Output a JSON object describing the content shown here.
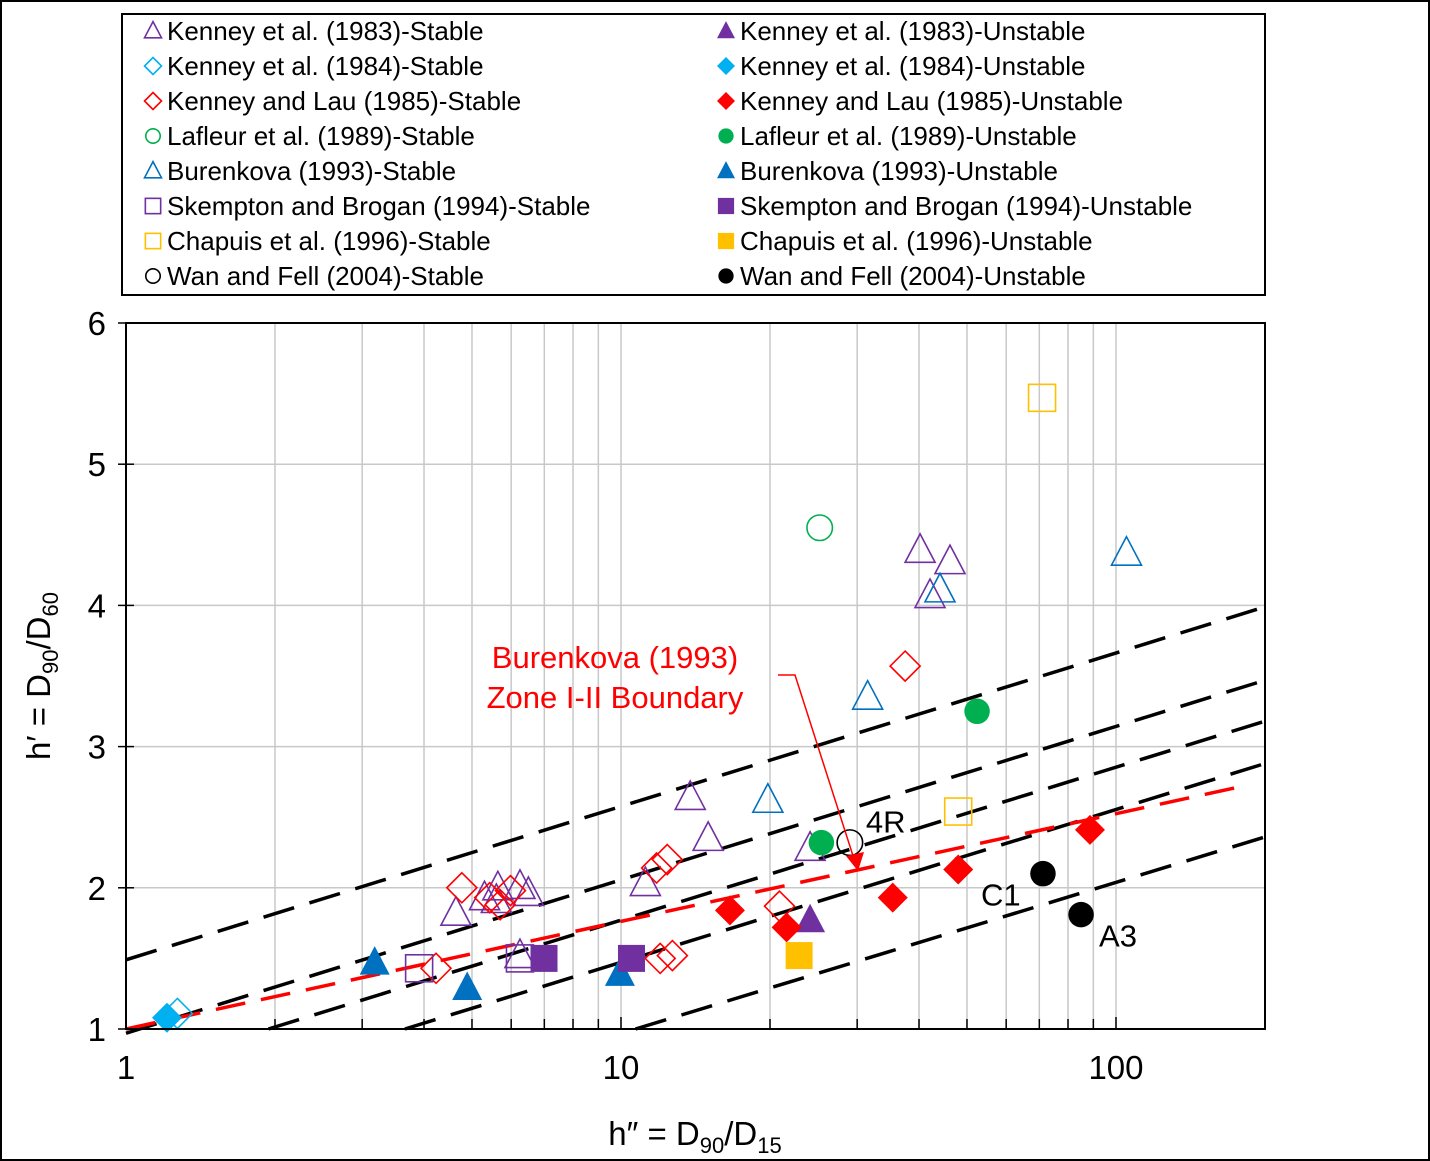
{
  "chart_data": {
    "type": "scatter",
    "title": "",
    "xlabel_parts": [
      "h″ = D",
      "90",
      "/D",
      "15"
    ],
    "ylabel_parts": [
      "h′ = D",
      "90",
      "/D",
      "60"
    ],
    "xscale": "log",
    "xlim": [
      1,
      200
    ],
    "ylim": [
      1,
      6
    ],
    "xticks": [
      "1",
      "10",
      "100"
    ],
    "yticks": [
      "1",
      "2",
      "3",
      "4",
      "5",
      "6"
    ],
    "grid": true,
    "legend_position": "top (above plot, two columns)",
    "series": [
      {
        "name": "Kenney et al. (1983)-Stable",
        "marker": "triangle",
        "filled": false,
        "color": "#7030a0",
        "points": [
          [
            40.2,
            4.39
          ],
          [
            46.2,
            4.31
          ],
          [
            42.1,
            4.07
          ],
          [
            13.8,
            2.64
          ],
          [
            15.0,
            2.35
          ],
          [
            11.2,
            2.03
          ],
          [
            24.1,
            2.28
          ],
          [
            4.64,
            1.82
          ],
          [
            5.3,
            1.93
          ],
          [
            5.64,
            2.0
          ],
          [
            6.25,
            2.01
          ],
          [
            6.5,
            1.96
          ],
          [
            5.6,
            1.91
          ],
          [
            6.25,
            1.52
          ]
        ]
      },
      {
        "name": "Kenney et al. (1983)-Unstable",
        "marker": "triangle",
        "filled": true,
        "color": "#7030a0",
        "points": [
          [
            24.1,
            1.77
          ]
        ]
      },
      {
        "name": "Kenney et al. (1984)-Stable",
        "marker": "diamond",
        "filled": false,
        "color": "#00b0f0",
        "points": [
          [
            1.27,
            1.11
          ]
        ]
      },
      {
        "name": "Kenney et al. (1984)-Unstable",
        "marker": "diamond",
        "filled": true,
        "color": "#00b0f0",
        "points": [
          [
            1.21,
            1.08
          ]
        ]
      },
      {
        "name": "Kenney and Lau (1985)-Stable",
        "marker": "diamond",
        "filled": false,
        "color": "#ff0000",
        "points": [
          [
            37.5,
            3.57
          ],
          [
            4.77,
            2.0
          ],
          [
            5.43,
            1.93
          ],
          [
            5.98,
            1.98
          ],
          [
            5.7,
            1.88
          ],
          [
            4.23,
            1.43
          ],
          [
            11.8,
            2.14
          ],
          [
            12.4,
            2.2
          ],
          [
            20.9,
            1.87
          ],
          [
            12.0,
            1.5
          ],
          [
            12.7,
            1.52
          ]
        ]
      },
      {
        "name": "Kenney and Lau (1985)-Unstable",
        "marker": "diamond",
        "filled": true,
        "color": "#ff0000",
        "points": [
          [
            16.6,
            1.84
          ],
          [
            21.6,
            1.72
          ],
          [
            35.4,
            1.93
          ],
          [
            48.0,
            2.13
          ],
          [
            88.6,
            2.41
          ]
        ]
      },
      {
        "name": "Lafleur et al. (1989)-Stable",
        "marker": "circle",
        "filled": false,
        "color": "#00b050",
        "points": [
          [
            25.2,
            4.55
          ]
        ]
      },
      {
        "name": "Lafleur et al. (1989)-Unstable",
        "marker": "circle",
        "filled": true,
        "color": "#00b050",
        "points": [
          [
            25.4,
            2.32
          ],
          [
            52.4,
            3.25
          ]
        ]
      },
      {
        "name": "Burenkova (1993)-Stable",
        "marker": "triangle",
        "filled": false,
        "color": "#0070c0",
        "points": [
          [
            105,
            4.37
          ],
          [
            44.1,
            4.11
          ],
          [
            31.5,
            3.35
          ],
          [
            19.8,
            2.62
          ]
        ]
      },
      {
        "name": "Burenkova (1993)-Unstable",
        "marker": "triangle",
        "filled": true,
        "color": "#0070c0",
        "points": [
          [
            3.18,
            1.47
          ],
          [
            4.89,
            1.29
          ],
          [
            9.95,
            1.39
          ]
        ]
      },
      {
        "name": "Skempton and Brogan (1994)-Stable",
        "marker": "square",
        "filled": false,
        "color": "#7030a0",
        "points": [
          [
            3.91,
            1.43
          ],
          [
            6.25,
            1.5
          ]
        ]
      },
      {
        "name": "Skempton and Brogan (1994)-Unstable",
        "marker": "square",
        "filled": true,
        "color": "#7030a0",
        "points": [
          [
            6.99,
            1.5
          ],
          [
            10.5,
            1.5
          ]
        ]
      },
      {
        "name": "Chapuis et al. (1996)-Stable",
        "marker": "square",
        "filled": false,
        "color": "#ffc000",
        "points": [
          [
            70.9,
            5.47
          ],
          [
            48.0,
            2.54
          ]
        ]
      },
      {
        "name": "Chapuis et al. (1996)-Unstable",
        "marker": "square",
        "filled": true,
        "color": "#ffc000",
        "points": [
          [
            22.9,
            1.52
          ]
        ]
      },
      {
        "name": "Wan and Fell (2004)-Stable",
        "marker": "circle",
        "filled": false,
        "color": "#000000",
        "points": [
          [
            29.0,
            2.32
          ]
        ]
      },
      {
        "name": "Wan and Fell (2004)-Unstable",
        "marker": "circle",
        "filled": true,
        "color": "#000000",
        "points": [
          [
            71.2,
            2.1
          ],
          [
            85.0,
            1.81
          ]
        ]
      }
    ],
    "reference_lines": [
      {
        "style": "dashed",
        "color": "#000000",
        "points": [
          [
            1,
            1.49
          ],
          [
            200,
            3.99
          ]
        ]
      },
      {
        "style": "dashed",
        "color": "#000000",
        "points": [
          [
            1,
            0.97
          ],
          [
            200,
            3.47
          ]
        ]
      },
      {
        "style": "dashed",
        "color": "#000000",
        "points": [
          [
            1.94,
            1
          ],
          [
            200,
            3.18
          ]
        ]
      },
      {
        "style": "dashed",
        "color": "#000000",
        "points": [
          [
            3.66,
            1
          ],
          [
            200,
            2.88
          ]
        ]
      },
      {
        "style": "dashed",
        "color": "#000000",
        "points": [
          [
            10.7,
            1
          ],
          [
            200,
            2.36
          ]
        ]
      },
      {
        "style": "dashed",
        "color": "#ff0000",
        "points": [
          [
            1,
            1
          ],
          [
            186,
            2.73
          ]
        ]
      }
    ],
    "annotations": {
      "boundary_line1": "Burenkova (1993)",
      "boundary_line2": "Zone I-II Boundary",
      "point_labels": [
        {
          "text": "4R",
          "x": 29.0,
          "y": 2.32
        },
        {
          "text": "C1",
          "x": 71.2,
          "y": 2.1
        },
        {
          "text": "A3",
          "x": 85.0,
          "y": 1.81
        }
      ]
    }
  }
}
